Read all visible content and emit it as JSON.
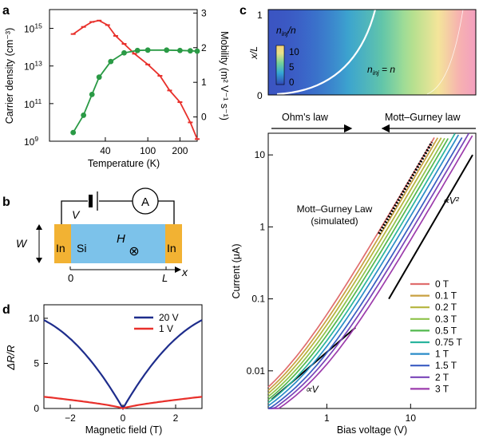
{
  "panel_labels": [
    "a",
    "b",
    "c",
    "d"
  ],
  "chart_data": [
    {
      "id": "a",
      "type": "line",
      "x_scale": "log",
      "xlabel": "Temperature (K)",
      "ylabel_left": "Carrier density (cm⁻³)",
      "ylabel_right": "Mobility (m² V⁻¹ s⁻¹)",
      "xlim": [
        12,
        290
      ],
      "xticks": [
        {
          "v": 40,
          "label": "40"
        },
        {
          "v": 100,
          "label": "100"
        },
        {
          "v": 200,
          "label": "200"
        }
      ],
      "left_axis": {
        "scale": "log",
        "ylim": [
          1000000000.0,
          1e+16
        ],
        "ticks": [
          {
            "v": 1000000000.0,
            "label": "10",
            "sup": "9"
          },
          {
            "v": 100000000000.0,
            "label": "10",
            "sup": "11"
          },
          {
            "v": 10000000000000.0,
            "label": "10",
            "sup": "13"
          },
          {
            "v": 1000000000000000.0,
            "label": "10",
            "sup": "15"
          }
        ]
      },
      "right_axis": {
        "scale": "linear",
        "ylim": [
          -0.7,
          3.1
        ],
        "ticks": [
          {
            "v": 0,
            "label": "0"
          },
          {
            "v": 1,
            "label": "1"
          },
          {
            "v": 2,
            "label": "2"
          },
          {
            "v": 3,
            "label": "3"
          }
        ]
      },
      "series": [
        {
          "name": "Carrier density",
          "axis": "left",
          "color": "#e8302b",
          "marker": "tick",
          "x": [
            20,
            25,
            30,
            35,
            42,
            50,
            60,
            75,
            100,
            130,
            160,
            200,
            250,
            290
          ],
          "y": [
            500000000000000.0,
            1200000000000000.0,
            2200000000000000.0,
            2600000000000000.0,
            1500000000000000.0,
            400000000000000.0,
            150000000000000.0,
            45000000000000.0,
            12000000000000.0,
            3000000000000.0,
            500000000000.0,
            120000000000.0,
            10000000000.0,
            1300000000.0
          ]
        },
        {
          "name": "Mobility",
          "axis": "right",
          "color": "#2a9a45",
          "marker": "circle",
          "x": [
            20,
            25,
            30,
            35,
            45,
            60,
            80,
            100,
            150,
            200,
            250,
            290
          ],
          "y": [
            -0.45,
            0.05,
            0.65,
            1.15,
            1.6,
            1.85,
            1.92,
            1.93,
            1.93,
            1.92,
            1.91,
            1.9
          ]
        }
      ]
    },
    {
      "id": "c-top",
      "type": "heatmap",
      "ylabel": "x/L",
      "yticks": [
        {
          "v": 0,
          "label": "0"
        },
        {
          "v": 1,
          "label": "1"
        }
      ],
      "colorbar": {
        "title": "n",
        "title_sub": "inj",
        "title_tail": "/n",
        "ticks": [
          "10",
          "5",
          "0"
        ]
      },
      "contour_label": {
        "main": "n",
        "sub": "inj",
        "tail": " = n"
      },
      "annotations": {
        "left": "Ohm's law",
        "right": "Mott–Gurney law"
      }
    },
    {
      "id": "c",
      "type": "line",
      "x_scale": "log",
      "y_scale": "log",
      "xlabel": "Bias voltage (V)",
      "ylabel": "Current (μA)",
      "xlim": [
        0.2,
        60
      ],
      "ylim": [
        0.003,
        20
      ],
      "xticks": [
        {
          "v": 1,
          "label": "1"
        },
        {
          "v": 10,
          "label": "10"
        }
      ],
      "yticks": [
        {
          "v": 0.01,
          "label": "0.01"
        },
        {
          "v": 0.1,
          "label": "0.1"
        },
        {
          "v": 1,
          "label": "1"
        },
        {
          "v": 10,
          "label": "10"
        }
      ],
      "field_values": [
        "0 T",
        "0.1 T",
        "0.2 T",
        "0.3 T",
        "0.5 T",
        "0.75 T",
        "1 T",
        "1.5 T",
        "2 T",
        "3 T"
      ],
      "colors": [
        "#e06e6e",
        "#c8a040",
        "#b4b43c",
        "#8ec34a",
        "#52b84e",
        "#2ab49e",
        "#2a8cc8",
        "#3a5cc2",
        "#7a44b8",
        "#9c3cac"
      ],
      "curve_x_at_current_10": [
        14.5,
        16,
        17.6,
        19.5,
        21.5,
        24,
        27,
        31,
        35,
        40
      ],
      "mott_gurney_simulated": {
        "label_line1": "Mott–Gurney Law",
        "label_line2": "(simulated)",
        "x": [
          4.2,
          18
        ],
        "y": [
          0.8,
          15
        ]
      },
      "guide_lines": [
        {
          "label": "∝V",
          "x": [
            0.22,
            2.2
          ],
          "y": [
            0.004,
            0.04
          ]
        },
        {
          "label": "∝V²",
          "x": [
            5.5,
            55
          ],
          "y": [
            0.1,
            10
          ]
        }
      ]
    },
    {
      "id": "d",
      "type": "line",
      "xlabel": "Magnetic field (T)",
      "ylabel": "ΔR/R",
      "xlim": [
        -3,
        3
      ],
      "ylim": [
        0,
        11.5
      ],
      "xticks": [
        {
          "v": -2,
          "label": "−2"
        },
        {
          "v": 0,
          "label": "0"
        },
        {
          "v": 2,
          "label": "2"
        }
      ],
      "yticks": [
        {
          "v": 0,
          "label": "0"
        },
        {
          "v": 5,
          "label": "5"
        },
        {
          "v": 10,
          "label": "10"
        }
      ],
      "legend_position": "top-right",
      "series": [
        {
          "name": "20 V",
          "color": "#1e2d8c",
          "shape": "v-curve",
          "edge_value": 9.8
        },
        {
          "name": "1 V",
          "color": "#e8302b",
          "shape": "v-curve",
          "edge_value": 1.3
        }
      ]
    }
  ],
  "schematic": {
    "voltage_label": "V",
    "ammeter_label": "A",
    "width_label": "W",
    "contact_left": "In",
    "contact_right": "In",
    "channel_label": "Si",
    "field_label": "H",
    "field_symbol": "⊗",
    "x_origin": "0",
    "x_end": "L",
    "x_axis": "x",
    "contact_color": "#f2b233",
    "channel_color": "#7cc2ea"
  }
}
